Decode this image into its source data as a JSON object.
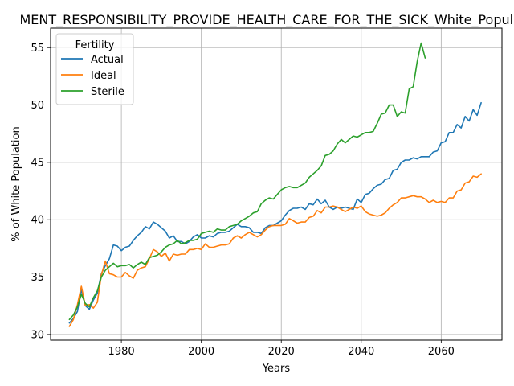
{
  "chart_data": {
    "type": "line",
    "title": "MENT_RESPONSIBILITY_PROVIDE_HEALTH_CARE_FOR_THE_SICK_White_Population",
    "xlabel": "Years",
    "ylabel": "% of White Population",
    "xlim": [
      1962.3,
      2075.2
    ],
    "ylim": [
      29.5,
      56.7
    ],
    "xticks": [
      1980,
      2000,
      2020,
      2040,
      2060
    ],
    "yticks": [
      30,
      35,
      40,
      45,
      50,
      55
    ],
    "grid": true,
    "legend": {
      "title": "Fertility",
      "position": "upper-left"
    },
    "series": [
      {
        "name": "Actual",
        "color": "#1f77b4",
        "x": [
          1967,
          1968,
          1969,
          1970,
          1971,
          1972,
          1973,
          1974,
          1975,
          1976,
          1977,
          1978,
          1979,
          1980,
          1981,
          1982,
          1983,
          1984,
          1985,
          1986,
          1987,
          1988,
          1989,
          1990,
          1991,
          1992,
          1993,
          1994,
          1995,
          1996,
          1997,
          1998,
          1999,
          2000,
          2001,
          2002,
          2003,
          2004,
          2005,
          2006,
          2007,
          2008,
          2009,
          2010,
          2011,
          2012,
          2013,
          2014,
          2015,
          2016,
          2017,
          2018,
          2019,
          2020,
          2021,
          2022,
          2023,
          2024,
          2025,
          2026,
          2027,
          2028,
          2029,
          2030,
          2031,
          2032,
          2033,
          2034,
          2035,
          2036,
          2037,
          2038,
          2039,
          2040,
          2041,
          2042,
          2043,
          2044,
          2045,
          2046,
          2047,
          2048,
          2049,
          2050,
          2051,
          2052,
          2053,
          2054,
          2055,
          2056,
          2057,
          2058,
          2059,
          2060,
          2061,
          2062,
          2063,
          2064,
          2065,
          2066,
          2067,
          2068,
          2069,
          2070
        ],
        "values": [
          31.0,
          31.4,
          32.0,
          33.9,
          32.5,
          32.2,
          33.0,
          33.6,
          35.3,
          36.0,
          36.6,
          37.8,
          37.7,
          37.3,
          37.6,
          37.7,
          38.2,
          38.6,
          38.9,
          39.4,
          39.2,
          39.8,
          39.6,
          39.3,
          39.0,
          38.4,
          38.6,
          38.1,
          38.1,
          37.9,
          38.1,
          38.5,
          38.7,
          38.4,
          38.4,
          38.6,
          38.5,
          38.8,
          38.9,
          38.9,
          39.0,
          39.3,
          39.6,
          39.4,
          39.4,
          39.3,
          38.9,
          38.9,
          38.8,
          39.3,
          39.5,
          39.5,
          39.7,
          39.9,
          40.4,
          40.8,
          41.0,
          41.0,
          41.1,
          40.9,
          41.4,
          41.3,
          41.8,
          41.4,
          41.7,
          41.1,
          40.9,
          41.1,
          41.0,
          41.1,
          41.0,
          40.9,
          41.8,
          41.5,
          42.2,
          42.3,
          42.7,
          43.0,
          43.1,
          43.5,
          43.6,
          44.3,
          44.4,
          45.0,
          45.2,
          45.2,
          45.4,
          45.3,
          45.5,
          45.5,
          45.5,
          45.9,
          46.0,
          46.7,
          46.8,
          47.6,
          47.6,
          48.3,
          48.0,
          49.0,
          48.6,
          49.6,
          49.1,
          50.2
        ]
      },
      {
        "name": "Ideal",
        "color": "#ff7f0e",
        "x": [
          1967,
          1968,
          1969,
          1970,
          1971,
          1972,
          1973,
          1974,
          1975,
          1976,
          1977,
          1978,
          1979,
          1980,
          1981,
          1982,
          1983,
          1984,
          1985,
          1986,
          1987,
          1988,
          1989,
          1990,
          1991,
          1992,
          1993,
          1994,
          1995,
          1996,
          1997,
          1998,
          1999,
          2000,
          2001,
          2002,
          2003,
          2004,
          2005,
          2006,
          2007,
          2008,
          2009,
          2010,
          2011,
          2012,
          2013,
          2014,
          2015,
          2016,
          2017,
          2018,
          2019,
          2020,
          2021,
          2022,
          2023,
          2024,
          2025,
          2026,
          2027,
          2028,
          2029,
          2030,
          2031,
          2032,
          2033,
          2034,
          2035,
          2036,
          2037,
          2038,
          2039,
          2040,
          2041,
          2042,
          2043,
          2044,
          2045,
          2046,
          2047,
          2048,
          2049,
          2050,
          2051,
          2052,
          2053,
          2054,
          2055,
          2056,
          2057,
          2058,
          2059,
          2060,
          2061,
          2062,
          2063,
          2064,
          2065,
          2066,
          2067,
          2068,
          2069,
          2070
        ],
        "values": [
          30.7,
          31.3,
          32.6,
          34.2,
          32.5,
          32.6,
          32.3,
          32.8,
          35.2,
          36.4,
          35.3,
          35.2,
          35.0,
          35.0,
          35.4,
          35.1,
          34.9,
          35.6,
          35.8,
          35.9,
          36.6,
          37.4,
          37.2,
          36.8,
          37.1,
          36.4,
          37.0,
          36.9,
          37.0,
          37.0,
          37.4,
          37.4,
          37.5,
          37.4,
          37.9,
          37.6,
          37.6,
          37.7,
          37.8,
          37.8,
          37.9,
          38.4,
          38.6,
          38.4,
          38.7,
          38.9,
          38.7,
          38.5,
          38.7,
          39.1,
          39.4,
          39.5,
          39.5,
          39.5,
          39.6,
          40.1,
          39.9,
          39.7,
          39.8,
          39.8,
          40.2,
          40.3,
          40.8,
          40.6,
          41.1,
          41.1,
          41.2,
          41.1,
          40.9,
          40.7,
          40.9,
          41.1,
          41.0,
          41.2,
          40.7,
          40.5,
          40.4,
          40.3,
          40.4,
          40.6,
          41.0,
          41.3,
          41.5,
          41.9,
          41.9,
          42.0,
          42.1,
          42.0,
          42.0,
          41.8,
          41.5,
          41.7,
          41.5,
          41.6,
          41.5,
          41.9,
          41.9,
          42.5,
          42.6,
          43.2,
          43.3,
          43.8,
          43.7,
          44.0
        ]
      },
      {
        "name": "Sterile",
        "color": "#2ca02c",
        "x": [
          1967,
          1968,
          1969,
          1970,
          1971,
          1972,
          1973,
          1974,
          1975,
          1976,
          1977,
          1978,
          1979,
          1980,
          1981,
          1982,
          1983,
          1984,
          1985,
          1986,
          1987,
          1988,
          1989,
          1990,
          1991,
          1992,
          1993,
          1994,
          1995,
          1996,
          1997,
          1998,
          1999,
          2000,
          2001,
          2002,
          2003,
          2004,
          2005,
          2006,
          2007,
          2008,
          2009,
          2010,
          2011,
          2012,
          2013,
          2014,
          2015,
          2016,
          2017,
          2018,
          2019,
          2020,
          2021,
          2022,
          2023,
          2024,
          2025,
          2026,
          2027,
          2028,
          2029,
          2030,
          2031,
          2032,
          2033,
          2034,
          2035,
          2036,
          2037,
          2038,
          2039,
          2040,
          2041,
          2042,
          2043,
          2044,
          2045,
          2046,
          2047,
          2048,
          2049,
          2050,
          2051,
          2052,
          2053,
          2054,
          2055,
          2056
        ],
        "values": [
          31.3,
          31.7,
          32.4,
          33.5,
          32.7,
          32.4,
          33.2,
          33.8,
          35.0,
          35.6,
          35.9,
          36.2,
          35.9,
          36.0,
          36.0,
          36.1,
          35.8,
          36.1,
          36.3,
          36.1,
          36.7,
          36.8,
          36.9,
          37.2,
          37.6,
          37.8,
          37.9,
          38.2,
          37.9,
          38.0,
          38.2,
          38.2,
          38.3,
          38.8,
          38.9,
          39.0,
          38.9,
          39.2,
          39.1,
          39.1,
          39.4,
          39.5,
          39.6,
          39.9,
          40.1,
          40.3,
          40.6,
          40.7,
          41.4,
          41.7,
          41.9,
          41.8,
          42.2,
          42.6,
          42.8,
          42.9,
          42.8,
          42.8,
          43.0,
          43.2,
          43.7,
          44.0,
          44.3,
          44.7,
          45.6,
          45.7,
          46.0,
          46.6,
          47.0,
          46.7,
          47.0,
          47.3,
          47.2,
          47.4,
          47.6,
          47.6,
          47.7,
          48.4,
          49.2,
          49.3,
          50.0,
          50.0,
          49.0,
          49.4,
          49.3,
          51.4,
          51.6,
          53.8,
          55.4,
          54.1
        ]
      }
    ]
  }
}
